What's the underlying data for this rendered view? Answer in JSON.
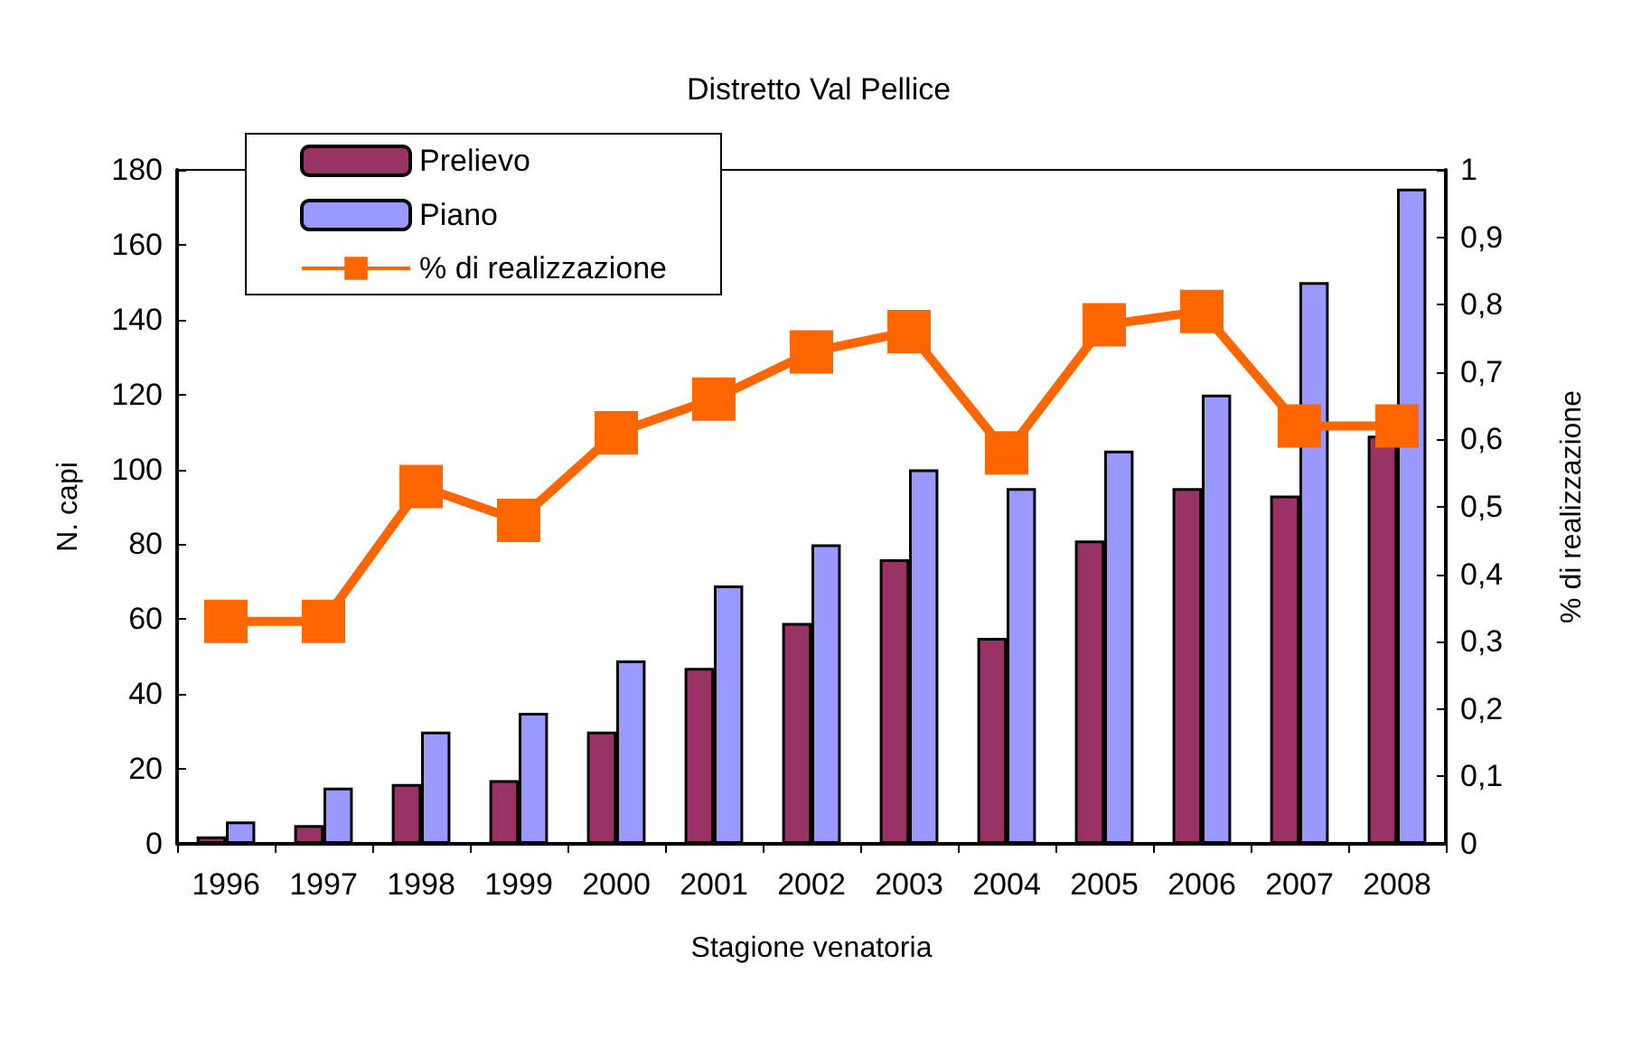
{
  "chart_data": {
    "type": "bar",
    "title": "Distretto Val Pellice",
    "xlabel": "Stagione venatoria",
    "ylabel": "N. capi",
    "y2label": "% di realizzazione",
    "categories": [
      "1996",
      "1997",
      "1998",
      "1999",
      "2000",
      "2001",
      "2002",
      "2003",
      "2004",
      "2005",
      "2006",
      "2007",
      "2008"
    ],
    "series": [
      {
        "name": "Prelievo",
        "color": "#993366",
        "values": [
          2,
          5,
          16,
          17,
          30,
          47,
          59,
          76,
          55,
          81,
          95,
          93,
          109
        ]
      },
      {
        "name": "Piano",
        "color": "#9999ff",
        "values": [
          6,
          15,
          30,
          35,
          49,
          69,
          80,
          100,
          95,
          105,
          120,
          150,
          175
        ]
      },
      {
        "name": "% di realizzazione",
        "type": "line",
        "axis": "y2",
        "color": "#ff6600",
        "marker": "square",
        "values": [
          0.33,
          0.33,
          0.53,
          0.48,
          0.61,
          0.66,
          0.73,
          0.76,
          0.58,
          0.77,
          0.79,
          0.62,
          0.62
        ]
      }
    ],
    "ylim": [
      0,
      180
    ],
    "yticks": [
      0,
      20,
      40,
      60,
      80,
      100,
      120,
      140,
      160,
      180
    ],
    "y2lim": [
      0,
      1
    ],
    "y2ticks": [
      0,
      {
        "value": 0.1,
        "label": "0,1"
      },
      {
        "value": 0.2,
        "label": "0,2"
      },
      {
        "value": 0.3,
        "label": "0,3"
      },
      {
        "value": 0.4,
        "label": "0,4"
      },
      {
        "value": 0.5,
        "label": "0,5"
      },
      {
        "value": 0.6,
        "label": "0,6"
      },
      {
        "value": 0.7,
        "label": "0,7"
      },
      {
        "value": 0.8,
        "label": "0,8"
      },
      {
        "value": 0.9,
        "label": "0,9"
      },
      1
    ],
    "grid": false,
    "legend": "top left"
  }
}
